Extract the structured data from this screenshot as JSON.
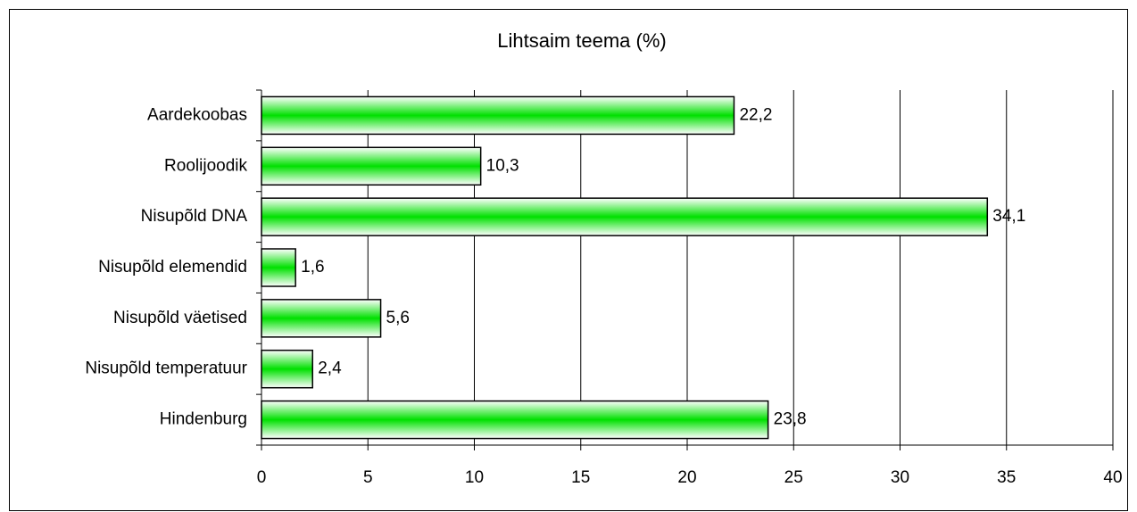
{
  "chart_data": {
    "type": "bar",
    "orientation": "horizontal",
    "title": "Lihtsaim teema (%)",
    "categories": [
      "Aardekoobas",
      "Roolijoodik",
      "Nisupõld DNA",
      "Nisupõld elemendid",
      "Nisupõld väetised",
      "Nisupõld temperatuur",
      "Hindenburg"
    ],
    "values": [
      22.2,
      10.3,
      34.1,
      1.6,
      5.6,
      2.4,
      23.8
    ],
    "value_labels": [
      "22,2",
      "10,3",
      "34,1",
      "1,6",
      "5,6",
      "2,4",
      "23,8"
    ],
    "color": "#00e000",
    "xlim": [
      0,
      40
    ],
    "xticks": [
      0,
      5,
      10,
      15,
      20,
      25,
      30,
      35,
      40
    ],
    "grid": true
  }
}
